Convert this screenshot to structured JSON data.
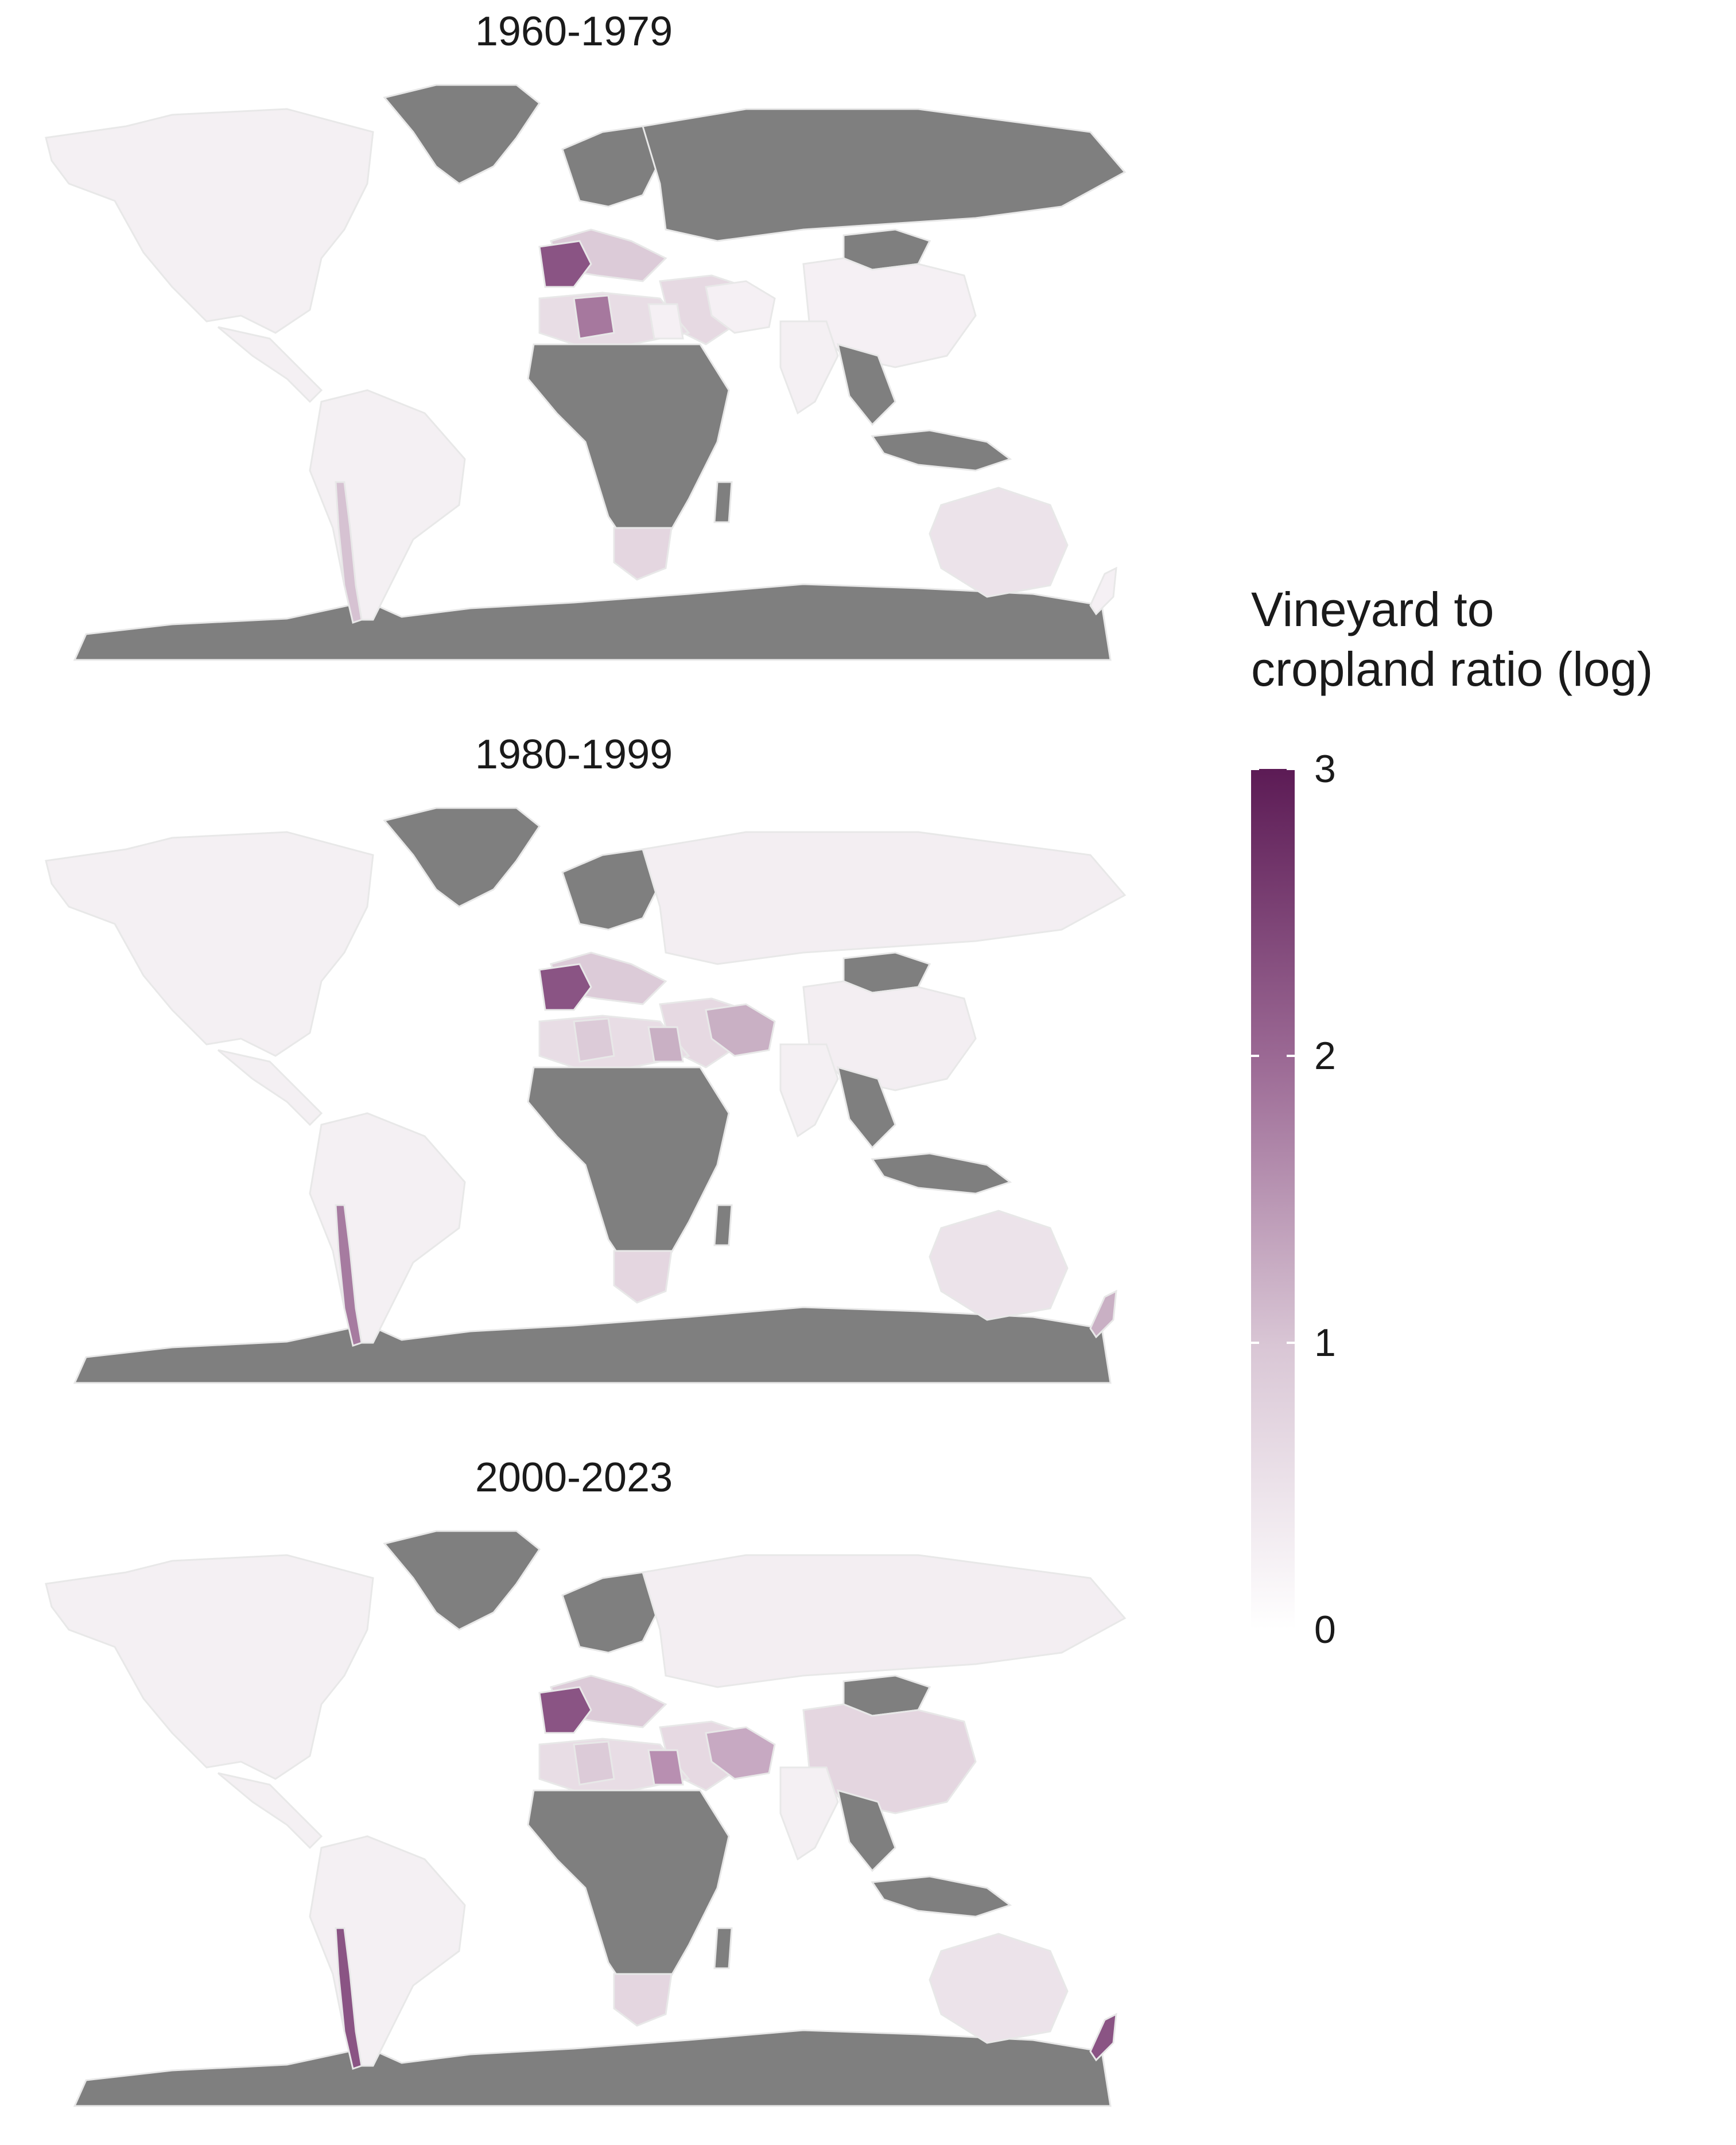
{
  "panels": [
    {
      "title": "1960-1979",
      "mongolia": "#7f7f7f",
      "russia": "#7f7f7f",
      "china": "#f5f0f4",
      "chile": "#d6c2d2",
      "nz": "#f5f0f4",
      "iran": "#f5f0f4",
      "egypt": "#f5f0f4",
      "algeria": "#a6789e"
    },
    {
      "title": "1980-1999",
      "mongolia": "#7f7f7f",
      "russia": "#f3eef2",
      "china": "#f3eef2",
      "chile": "#a67ba0",
      "nz": "#c9b0c4",
      "iran": "#c9b0c4",
      "egypt": "#c9b0c4",
      "algeria": "#dccbd8"
    },
    {
      "title": "2000-2023",
      "mongolia": "#7f7f7f",
      "russia": "#f3eef2",
      "china": "#e4d6e0",
      "chile": "#8a5484",
      "nz": "#8a5484",
      "iran": "#c7a9c2",
      "egypt": "#b88fb1",
      "algeria": "#dccbd8"
    }
  ],
  "legend": {
    "title": "Vineyard to\ncropland ratio (log)",
    "ticks": [
      "3",
      "2",
      "1",
      "0"
    ],
    "range": [
      0,
      3
    ],
    "colors": {
      "low": "#ffffff",
      "high": "#5c1b55",
      "no_data": "#7f7f7f",
      "border": "#e6e6e6"
    }
  }
}
